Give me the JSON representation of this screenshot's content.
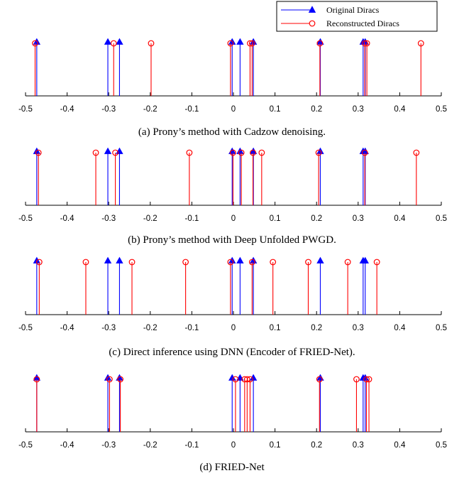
{
  "legend": {
    "original_label": "Original Diracs",
    "reconstructed_label": "Reconstructed Diracs",
    "placement": "top-right"
  },
  "colors": {
    "original": "#0000ff",
    "reconstructed": "#ff0000"
  },
  "chart_data": [
    {
      "type": "stem",
      "caption": "(a) Prony’s method with Cadzow denoising.",
      "xlim": [
        -0.5,
        0.5
      ],
      "xticks": [
        -0.5,
        -0.4,
        -0.3,
        -0.2,
        -0.1,
        0,
        0.1,
        0.2,
        0.3,
        0.4,
        0.5
      ],
      "xtick_labels": [
        "-0.5",
        "-0.4",
        "-0.3",
        "-0.2",
        "-0.1",
        "0",
        "0.1",
        "0.2",
        "0.3",
        "0.4",
        "0.5"
      ],
      "series": [
        {
          "name": "Original Diracs",
          "marker": "triangle",
          "x": [
            -0.473,
            -0.302,
            -0.274,
            -0.003,
            0.016,
            0.048,
            0.209,
            0.312,
            0.317
          ]
        },
        {
          "name": "Reconstructed Diracs",
          "marker": "circle",
          "x": [
            -0.477,
            -0.288,
            -0.198,
            -0.007,
            0.04,
            0.045,
            0.208,
            0.316,
            0.321,
            0.451
          ]
        }
      ]
    },
    {
      "type": "stem",
      "caption": "(b) Prony’s method with Deep Unfolded PWGD.",
      "xlim": [
        -0.5,
        0.5
      ],
      "xticks": [
        -0.5,
        -0.4,
        -0.3,
        -0.2,
        -0.1,
        0,
        0.1,
        0.2,
        0.3,
        0.4,
        0.5
      ],
      "xtick_labels": [
        "-0.5",
        "-0.4",
        "-0.3",
        "-0.2",
        "-0.1",
        "0",
        "0.1",
        "0.2",
        "0.3",
        "0.4",
        "0.5"
      ],
      "series": [
        {
          "name": "Original Diracs",
          "marker": "triangle",
          "x": [
            -0.473,
            -0.302,
            -0.274,
            -0.003,
            0.016,
            0.048,
            0.209,
            0.312,
            0.317
          ]
        },
        {
          "name": "Reconstructed Diracs",
          "marker": "circle",
          "x": [
            -0.469,
            -0.331,
            -0.284,
            -0.106,
            -0.001,
            0.019,
            0.047,
            0.068,
            0.205,
            0.316,
            0.44
          ]
        }
      ]
    },
    {
      "type": "stem",
      "caption": "(c) Direct inference using DNN (Encoder of FRIED-Net).",
      "xlim": [
        -0.5,
        0.5
      ],
      "xticks": [
        -0.5,
        -0.4,
        -0.3,
        -0.2,
        -0.1,
        0,
        0.1,
        0.2,
        0.3,
        0.4,
        0.5
      ],
      "xtick_labels": [
        "-0.5",
        "-0.4",
        "-0.3",
        "-0.2",
        "-0.1",
        "0",
        "0.1",
        "0.2",
        "0.3",
        "0.4",
        "0.5"
      ],
      "series": [
        {
          "name": "Original Diracs",
          "marker": "triangle",
          "x": [
            -0.473,
            -0.302,
            -0.274,
            -0.003,
            0.016,
            0.048,
            0.209,
            0.312,
            0.317
          ]
        },
        {
          "name": "Reconstructed Diracs",
          "marker": "circle",
          "x": [
            -0.467,
            -0.355,
            -0.244,
            -0.115,
            -0.007,
            0.045,
            0.095,
            0.18,
            0.275,
            0.345
          ]
        }
      ]
    },
    {
      "type": "stem",
      "caption": "(d) FRIED-Net",
      "xlim": [
        -0.5,
        0.5
      ],
      "xticks": [
        -0.5,
        -0.4,
        -0.3,
        -0.2,
        -0.1,
        0,
        0.1,
        0.2,
        0.3,
        0.4,
        0.5
      ],
      "xtick_labels": [
        "-0.5",
        "-0.4",
        "-0.3",
        "-0.2",
        "-0.1",
        "0",
        "0.1",
        "0.2",
        "0.3",
        "0.4",
        "0.5"
      ],
      "series": [
        {
          "name": "Original Diracs",
          "marker": "triangle",
          "x": [
            -0.473,
            -0.302,
            -0.274,
            -0.003,
            0.016,
            0.048,
            0.209,
            0.312,
            0.317
          ]
        },
        {
          "name": "Reconstructed Diracs",
          "marker": "circle",
          "x": [
            -0.473,
            -0.298,
            -0.272,
            0.005,
            0.027,
            0.033,
            0.04,
            0.207,
            0.296,
            0.32,
            0.326
          ]
        }
      ]
    }
  ]
}
